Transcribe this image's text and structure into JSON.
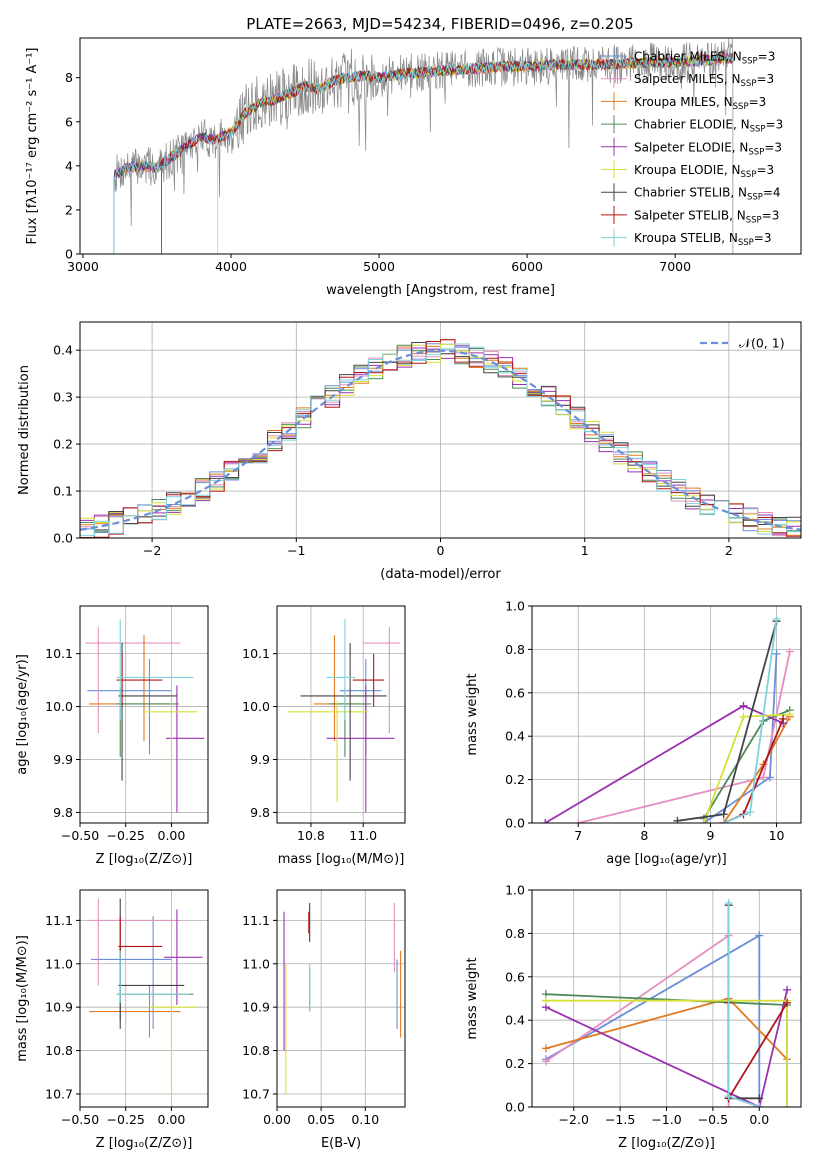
{
  "figure_title": "PLATE=2663, MJD=54234, FIBERID=0496, z=0.205",
  "models": [
    {
      "label": "Chabrier MILES, N",
      "sub": "SSP",
      "suffix": "=3",
      "color": "#6a8fd8"
    },
    {
      "label": "Salpeter MILES, N",
      "sub": "SSP",
      "suffix": "=3",
      "color": "#e58fc0"
    },
    {
      "label": "Kroupa MILES, N",
      "sub": "SSP",
      "suffix": "=3",
      "color": "#e07b20"
    },
    {
      "label": "Chabrier ELODIE, N",
      "sub": "SSP",
      "suffix": "=3",
      "color": "#4f8a5a"
    },
    {
      "label": "Salpeter ELODIE, N",
      "sub": "SSP",
      "suffix": "=3",
      "color": "#9a32b0"
    },
    {
      "label": "Kroupa ELODIE, N",
      "sub": "SSP",
      "suffix": "=3",
      "color": "#d6e03a"
    },
    {
      "label": "Chabrier STELIB, N",
      "sub": "SSP",
      "suffix": "=4",
      "color": "#444444"
    },
    {
      "label": "Salpeter STELIB, N",
      "sub": "SSP",
      "suffix": "=3",
      "color": "#b01818"
    },
    {
      "label": "Kroupa STELIB, N",
      "sub": "SSP",
      "suffix": "=3",
      "color": "#7fd2dc"
    }
  ],
  "data_color": "#888888",
  "chart_data": [
    {
      "id": "spectrum",
      "type": "line",
      "xlabel": "wavelength [Angstrom, rest frame]",
      "ylabel": "Flux [fλ10⁻¹⁷ erg cm⁻² s⁻¹ A⁻¹]",
      "xlim": [
        2980,
        7850
      ],
      "ylim": [
        0,
        9.8
      ],
      "xticks": [
        3000,
        4000,
        5000,
        6000,
        7000
      ],
      "xticklabels": [
        "3000",
        "4000",
        "5000",
        "6000",
        "7000"
      ],
      "yticks": [
        0,
        2,
        4,
        6,
        8
      ],
      "yticklabels": [
        "0",
        "2",
        "4",
        "6",
        "8"
      ],
      "legend": "top-right",
      "model_curve": {
        "x": [
          3210,
          3300,
          3400,
          3500,
          3600,
          3700,
          3800,
          3900,
          4000,
          4100,
          4200,
          4300,
          4400,
          4500,
          4600,
          4700,
          4800,
          4900,
          5000,
          5200,
          5400,
          5600,
          5800,
          6000,
          6200,
          6400,
          6600,
          6800,
          7000,
          7200,
          7400
        ],
        "y": [
          3.6,
          3.9,
          4.0,
          3.9,
          4.4,
          4.9,
          5.3,
          5.2,
          5.5,
          6.4,
          6.9,
          7.0,
          7.3,
          7.6,
          7.5,
          7.9,
          8.0,
          8.1,
          8.0,
          8.2,
          8.3,
          8.4,
          8.5,
          8.5,
          8.6,
          8.6,
          8.6,
          8.7,
          8.7,
          8.8,
          8.9
        ]
      },
      "model_start_wavelength": [
        3210,
        3210,
        3210,
        3210,
        3210,
        3910,
        3210,
        3530,
        3210
      ],
      "data_end_wavelength": 7390
    },
    {
      "id": "residuals",
      "type": "histogram",
      "xlabel": "(data-model)/error",
      "ylabel": "Normed distribution",
      "xlim": [
        -2.5,
        2.5
      ],
      "ylim": [
        0,
        0.46
      ],
      "xticks": [
        -2,
        -1,
        0,
        1,
        2
      ],
      "xticklabels": [
        "−2",
        "−1",
        "0",
        "1",
        "2"
      ],
      "yticks": [
        0.0,
        0.1,
        0.2,
        0.3,
        0.4
      ],
      "yticklabels": [
        "0.0",
        "0.1",
        "0.2",
        "0.3",
        "0.4"
      ],
      "bin_width": 0.1,
      "reference_label": "𝒩(0, 1)",
      "reference_color": "#6a8fd8",
      "legend": "top-right"
    },
    {
      "id": "age_vs_Z",
      "type": "errorbar",
      "xlabel": "Z [log₁₀(Z/Z⊙)]",
      "ylabel": "age  [log₁₀(age/yr)]",
      "xlim": [
        -0.5,
        0.2
      ],
      "ylim": [
        9.78,
        10.19
      ],
      "xticks": [
        -0.5,
        -0.25,
        0.0
      ],
      "xticklabels": [
        "−0.50",
        "−0.25",
        "0.00"
      ],
      "yticks": [
        9.8,
        9.9,
        10.0,
        10.1
      ],
      "yticklabels": [
        "9.8",
        "9.9",
        "10.0",
        "10.1"
      ],
      "points": [
        {
          "x": -0.12,
          "xerr": [
            0.34,
            0.12
          ],
          "y": 10.03,
          "yerr": [
            0.12,
            0.06
          ]
        },
        {
          "x": -0.4,
          "xerr": [
            0.07,
            0.45
          ],
          "y": 10.12,
          "yerr": [
            0.17,
            0.03
          ]
        },
        {
          "x": -0.15,
          "xerr": [
            0.3,
            0.13
          ],
          "y": 10.005,
          "yerr": [
            0.07,
            0.13
          ]
        },
        {
          "x": -0.28,
          "xerr": [
            0.02,
            0.32
          ],
          "y": 10.005,
          "yerr": [
            0.1,
            0.03
          ]
        },
        {
          "x": 0.03,
          "xerr": [
            0.06,
            0.15
          ],
          "y": 9.94,
          "yerr": [
            0.14,
            0.1
          ]
        },
        {
          "x": 0.0,
          "xerr": [
            0.14,
            0.14
          ],
          "y": 9.99,
          "yerr": [
            0.17,
            0.02
          ]
        },
        {
          "x": -0.27,
          "xerr": [
            0.02,
            0.3
          ],
          "y": 10.02,
          "yerr": [
            0.16,
            0.1
          ]
        },
        {
          "x": -0.27,
          "xerr": [
            0.03,
            0.22
          ],
          "y": 10.05,
          "yerr": [
            0.05,
            0.05
          ]
        },
        {
          "x": -0.28,
          "xerr": [
            0.02,
            0.4
          ],
          "y": 10.055,
          "yerr": [
            0.08,
            0.11
          ]
        }
      ]
    },
    {
      "id": "age_vs_mass",
      "type": "errorbar",
      "xlabel": "mass [log₁₀(M/M⊙)]",
      "ylabel": "",
      "xlim": [
        10.67,
        11.16
      ],
      "ylim": [
        9.78,
        10.19
      ],
      "xticks": [
        10.8,
        11.0
      ],
      "xticklabels": [
        "10.8",
        "11.0"
      ],
      "yticks": [
        9.8,
        9.9,
        10.0,
        10.1
      ],
      "yticklabels": [
        "9.8",
        "9.9",
        "10.0",
        "10.1"
      ],
      "points": [
        {
          "x": 11.01,
          "xerr": [
            0.1,
            0.06
          ],
          "y": 10.03,
          "yerr": [
            0.12,
            0.06
          ]
        },
        {
          "x": 11.1,
          "xerr": [
            0.1,
            0.04
          ],
          "y": 10.12,
          "yerr": [
            0.17,
            0.03
          ]
        },
        {
          "x": 10.89,
          "xerr": [
            0.08,
            0.09
          ],
          "y": 10.005,
          "yerr": [
            0.07,
            0.13
          ]
        },
        {
          "x": 10.93,
          "xerr": [
            0.06,
            0.1
          ],
          "y": 10.005,
          "yerr": [
            0.1,
            0.03
          ]
        },
        {
          "x": 11.01,
          "xerr": [
            0.15,
            0.11
          ],
          "y": 9.94,
          "yerr": [
            0.14,
            0.1
          ]
        },
        {
          "x": 10.9,
          "xerr": [
            0.19,
            0.12
          ],
          "y": 9.99,
          "yerr": [
            0.17,
            0.02
          ]
        },
        {
          "x": 10.95,
          "xerr": [
            0.19,
            0.14
          ],
          "y": 10.02,
          "yerr": [
            0.16,
            0.1
          ]
        },
        {
          "x": 11.04,
          "xerr": [
            0.08,
            0.04
          ],
          "y": 10.05,
          "yerr": [
            0.05,
            0.05
          ]
        },
        {
          "x": 10.93,
          "xerr": [
            0.07,
            0.04
          ],
          "y": 10.055,
          "yerr": [
            0.08,
            0.11
          ]
        }
      ]
    },
    {
      "id": "massweight_vs_age",
      "type": "line",
      "xlabel": "age  [log₁₀(age/yr)]",
      "ylabel": "mass weight",
      "xlim": [
        6.3,
        10.37
      ],
      "ylim": [
        0,
        1.0
      ],
      "xticks": [
        7,
        8,
        9,
        10
      ],
      "xticklabels": [
        "7",
        "8",
        "9",
        "10"
      ],
      "yticks": [
        0.0,
        0.2,
        0.4,
        0.6,
        0.8,
        1.0
      ],
      "yticklabels": [
        "0.0",
        "0.2",
        "0.4",
        "0.6",
        "0.8",
        "1.0"
      ],
      "series": [
        {
          "x": [
            8.9,
            9.9,
            10.0
          ],
          "y": [
            0.0,
            0.21,
            0.78
          ]
        },
        {
          "x": [
            7.0,
            9.8,
            10.2
          ],
          "y": [
            0.0,
            0.21,
            0.79
          ]
        },
        {
          "x": [
            9.2,
            9.8,
            10.2
          ],
          "y": [
            0.0,
            0.27,
            0.49
          ]
        },
        {
          "x": [
            8.9,
            9.8,
            10.2
          ],
          "y": [
            0.02,
            0.47,
            0.52
          ]
        },
        {
          "x": [
            6.5,
            9.5,
            10.1
          ],
          "y": [
            0.0,
            0.54,
            0.46
          ]
        },
        {
          "x": [
            8.9,
            9.5,
            10.2
          ],
          "y": [
            0.0,
            0.49,
            0.5
          ]
        },
        {
          "x": [
            8.5,
            9.2,
            10.0
          ],
          "y": [
            0.01,
            0.04,
            0.93
          ]
        },
        {
          "x": [
            9.2,
            9.5,
            10.1
          ],
          "y": [
            0.0,
            0.04,
            0.48
          ]
        },
        {
          "x": [
            9.2,
            9.6,
            10.0
          ],
          "y": [
            0.0,
            0.05,
            0.94
          ]
        }
      ]
    },
    {
      "id": "mass_vs_Z",
      "type": "errorbar",
      "xlabel": "Z [log₁₀(Z/Z⊙)]",
      "ylabel": "mass [log₁₀(M/M⊙)]",
      "xlim": [
        -0.5,
        0.2
      ],
      "ylim": [
        10.67,
        11.17
      ],
      "xticks": [
        -0.5,
        -0.25,
        0.0
      ],
      "xticklabels": [
        "−0.50",
        "−0.25",
        "0.00"
      ],
      "yticks": [
        10.7,
        10.8,
        10.9,
        11.0,
        11.1
      ],
      "yticklabels": [
        "10.7",
        "10.8",
        "10.9",
        "11.0",
        "11.1"
      ],
      "points": [
        {
          "x": -0.1,
          "xerr": [
            0.34,
            0.1
          ],
          "y": 11.01,
          "yerr": [
            0.16,
            0.1
          ]
        },
        {
          "x": -0.4,
          "xerr": [
            0.05,
            0.45
          ],
          "y": 11.1,
          "yerr": [
            0.15,
            0.05
          ]
        },
        {
          "x": -0.12,
          "xerr": [
            0.33,
            0.17
          ],
          "y": 10.89,
          "yerr": [
            0.06,
            0.06
          ]
        },
        {
          "x": -0.28,
          "xerr": [
            0.02,
            0.4
          ],
          "y": 10.93,
          "yerr": [
            0.06,
            0.11
          ]
        },
        {
          "x": 0.03,
          "xerr": [
            0.07,
            0.14
          ],
          "y": 11.015,
          "yerr": [
            0.11,
            0.11
          ]
        },
        {
          "x": 0.0,
          "xerr": [
            0.12,
            0.14
          ],
          "y": 10.9,
          "yerr": [
            0.21,
            0.1
          ]
        },
        {
          "x": -0.28,
          "xerr": [
            0.01,
            0.35
          ],
          "y": 10.95,
          "yerr": [
            0.1,
            0.2
          ]
        },
        {
          "x": -0.28,
          "xerr": [
            0.01,
            0.23
          ],
          "y": 11.04,
          "yerr": [
            0.03,
            0.07
          ]
        },
        {
          "x": -0.28,
          "xerr": [
            0.02,
            0.38
          ],
          "y": 10.93,
          "yerr": [
            0.02,
            0.1
          ]
        }
      ]
    },
    {
      "id": "mass_vs_ebv",
      "type": "errorbar",
      "xlabel": "E(B-V)",
      "ylabel": "",
      "xlim": [
        0.0,
        0.145
      ],
      "ylim": [
        10.67,
        11.17
      ],
      "xticks": [
        0.0,
        0.05,
        0.1
      ],
      "xticklabels": [
        "0.00",
        "0.05",
        "0.10"
      ],
      "yticks": [
        10.7,
        10.8,
        10.9,
        11.0,
        11.1
      ],
      "yticklabels": [
        "10.7",
        "10.8",
        "10.9",
        "11.0",
        "11.1"
      ],
      "points": [
        {
          "x": 0.136,
          "xerr": [
            0,
            0
          ],
          "y": 10.93,
          "yerr": [
            0.08,
            0.08
          ]
        },
        {
          "x": 0.133,
          "xerr": [
            0,
            0
          ],
          "y": 11.04,
          "yerr": [
            0.06,
            0.1
          ]
        },
        {
          "x": 0.14,
          "xerr": [
            0,
            0
          ],
          "y": 10.93,
          "yerr": [
            0.1,
            0.1
          ]
        },
        {
          "x": 0.037,
          "xerr": [
            0,
            0
          ],
          "y": 10.92,
          "yerr": [
            0.03,
            0.07
          ]
        },
        {
          "x": 0.008,
          "xerr": [
            0,
            0
          ],
          "y": 10.98,
          "yerr": [
            0.18,
            0.14
          ]
        },
        {
          "x": 0.01,
          "xerr": [
            0,
            0
          ],
          "y": 10.85,
          "yerr": [
            0.15,
            0.15
          ]
        },
        {
          "x": 0.037,
          "xerr": [
            0,
            0
          ],
          "y": 11.09,
          "yerr": [
            0.04,
            0.05
          ]
        },
        {
          "x": 0.036,
          "xerr": [
            0,
            0
          ],
          "y": 11.09,
          "yerr": [
            0.02,
            0.03
          ]
        },
        {
          "x": 0.037,
          "xerr": [
            0,
            0
          ],
          "y": 10.95,
          "yerr": [
            0.06,
            0.05
          ]
        }
      ]
    },
    {
      "id": "massweight_vs_Z",
      "type": "line",
      "xlabel": "Z [log₁₀(Z/Z⊙)]",
      "ylabel": "mass weight",
      "xlim": [
        -2.45,
        0.45
      ],
      "ylim": [
        0,
        1.0
      ],
      "xticks": [
        -2.0,
        -1.5,
        -1.0,
        -0.5,
        0.0
      ],
      "xticklabels": [
        "−2.0",
        "−1.5",
        "−1.0",
        "−0.5",
        "0.0"
      ],
      "yticks": [
        0.0,
        0.2,
        0.4,
        0.6,
        0.8,
        1.0
      ],
      "yticklabels": [
        "0.0",
        "0.2",
        "0.4",
        "0.6",
        "0.8",
        "1.0"
      ],
      "series": [
        {
          "x": [
            -2.3,
            0.0,
            0.0
          ],
          "y": [
            0.22,
            0.79,
            0.0
          ]
        },
        {
          "x": [
            -2.3,
            -0.33,
            -0.33
          ],
          "y": [
            0.21,
            0.79,
            0.0
          ]
        },
        {
          "x": [
            -2.3,
            -0.33,
            0.3
          ],
          "y": [
            0.27,
            0.5,
            0.22
          ]
        },
        {
          "x": [
            -2.3,
            0.3,
            0.3
          ],
          "y": [
            0.52,
            0.47,
            0.0
          ]
        },
        {
          "x": [
            -2.3,
            0.0,
            0.3
          ],
          "y": [
            0.46,
            0.0,
            0.54
          ]
        },
        {
          "x": [
            -2.3,
            0.3,
            0.3
          ],
          "y": [
            0.49,
            0.49,
            0.0
          ]
        },
        {
          "x": [
            -0.33,
            -0.33,
            0.0
          ],
          "y": [
            0.93,
            0.04,
            0.04
          ]
        },
        {
          "x": [
            -0.33,
            -0.33,
            0.3
          ],
          "y": [
            0.48,
            0.04,
            0.48
          ]
        },
        {
          "x": [
            -0.33,
            -0.33,
            0.0
          ],
          "y": [
            0.94,
            0.05,
            0.0
          ]
        }
      ]
    }
  ]
}
